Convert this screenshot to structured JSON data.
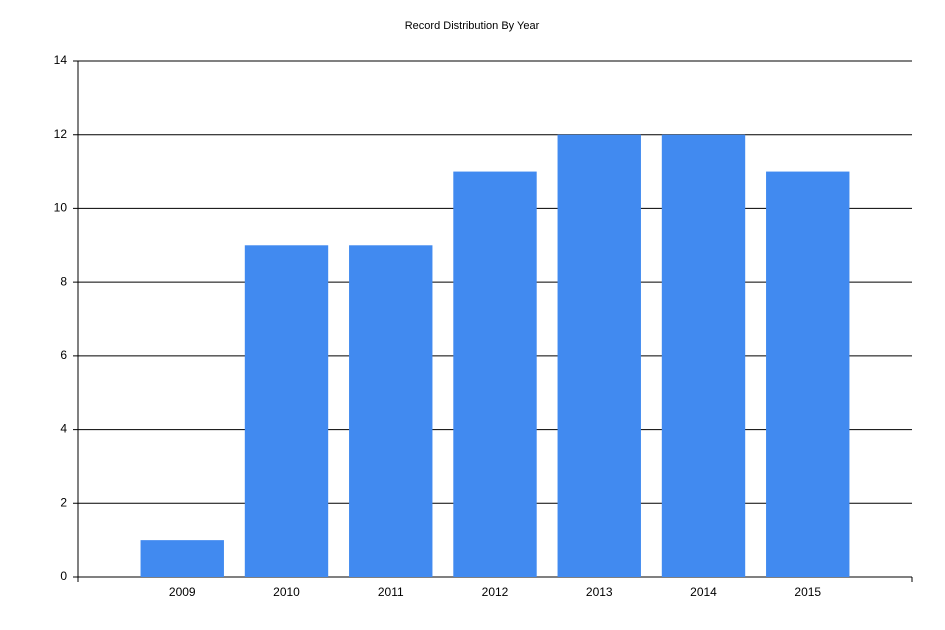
{
  "chart_data": {
    "type": "bar",
    "title": "Record Distribution By Year",
    "categories": [
      "2009",
      "2010",
      "2011",
      "2012",
      "2013",
      "2014",
      "2015"
    ],
    "values": [
      1,
      9,
      9,
      11,
      12,
      12,
      11
    ],
    "color": "#418af0",
    "ylim": [
      0,
      14
    ],
    "yticks": [
      0,
      2,
      4,
      6,
      8,
      10,
      12,
      14
    ],
    "grid": true
  }
}
